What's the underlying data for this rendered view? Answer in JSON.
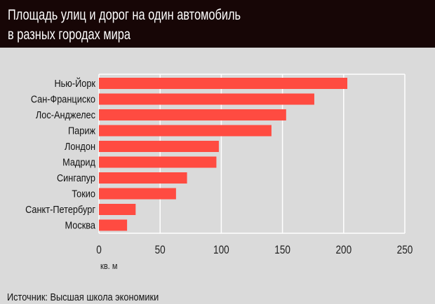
{
  "header": {
    "title_line1": "Площадь  улиц и дорог на один автомобиль",
    "title_line2": "в разных городах мира"
  },
  "source": "Источник: Высшая школа экономики",
  "chart_data": {
    "type": "bar",
    "orientation": "horizontal",
    "title": "Площадь  улиц и дорог на один автомобиль в разных городах мира",
    "xlabel": "кв. м",
    "ylabel": "",
    "categories": [
      "Нью-Йорк",
      "Сан-Франциско",
      "Лос-Анджелес",
      "Париж",
      "Лондон",
      "Мадрид",
      "Сингапур",
      "Токио",
      "Санкт-Петербург",
      "Москва"
    ],
    "values": [
      203,
      176,
      153,
      141,
      98,
      96,
      72,
      63,
      30,
      23
    ],
    "xlim": [
      0,
      250
    ],
    "xticks": [
      "0",
      "50",
      "100",
      "150",
      "200",
      "250"
    ],
    "grid": true,
    "bar_color": "#ff4b41",
    "grid_color": "#ffffff"
  }
}
